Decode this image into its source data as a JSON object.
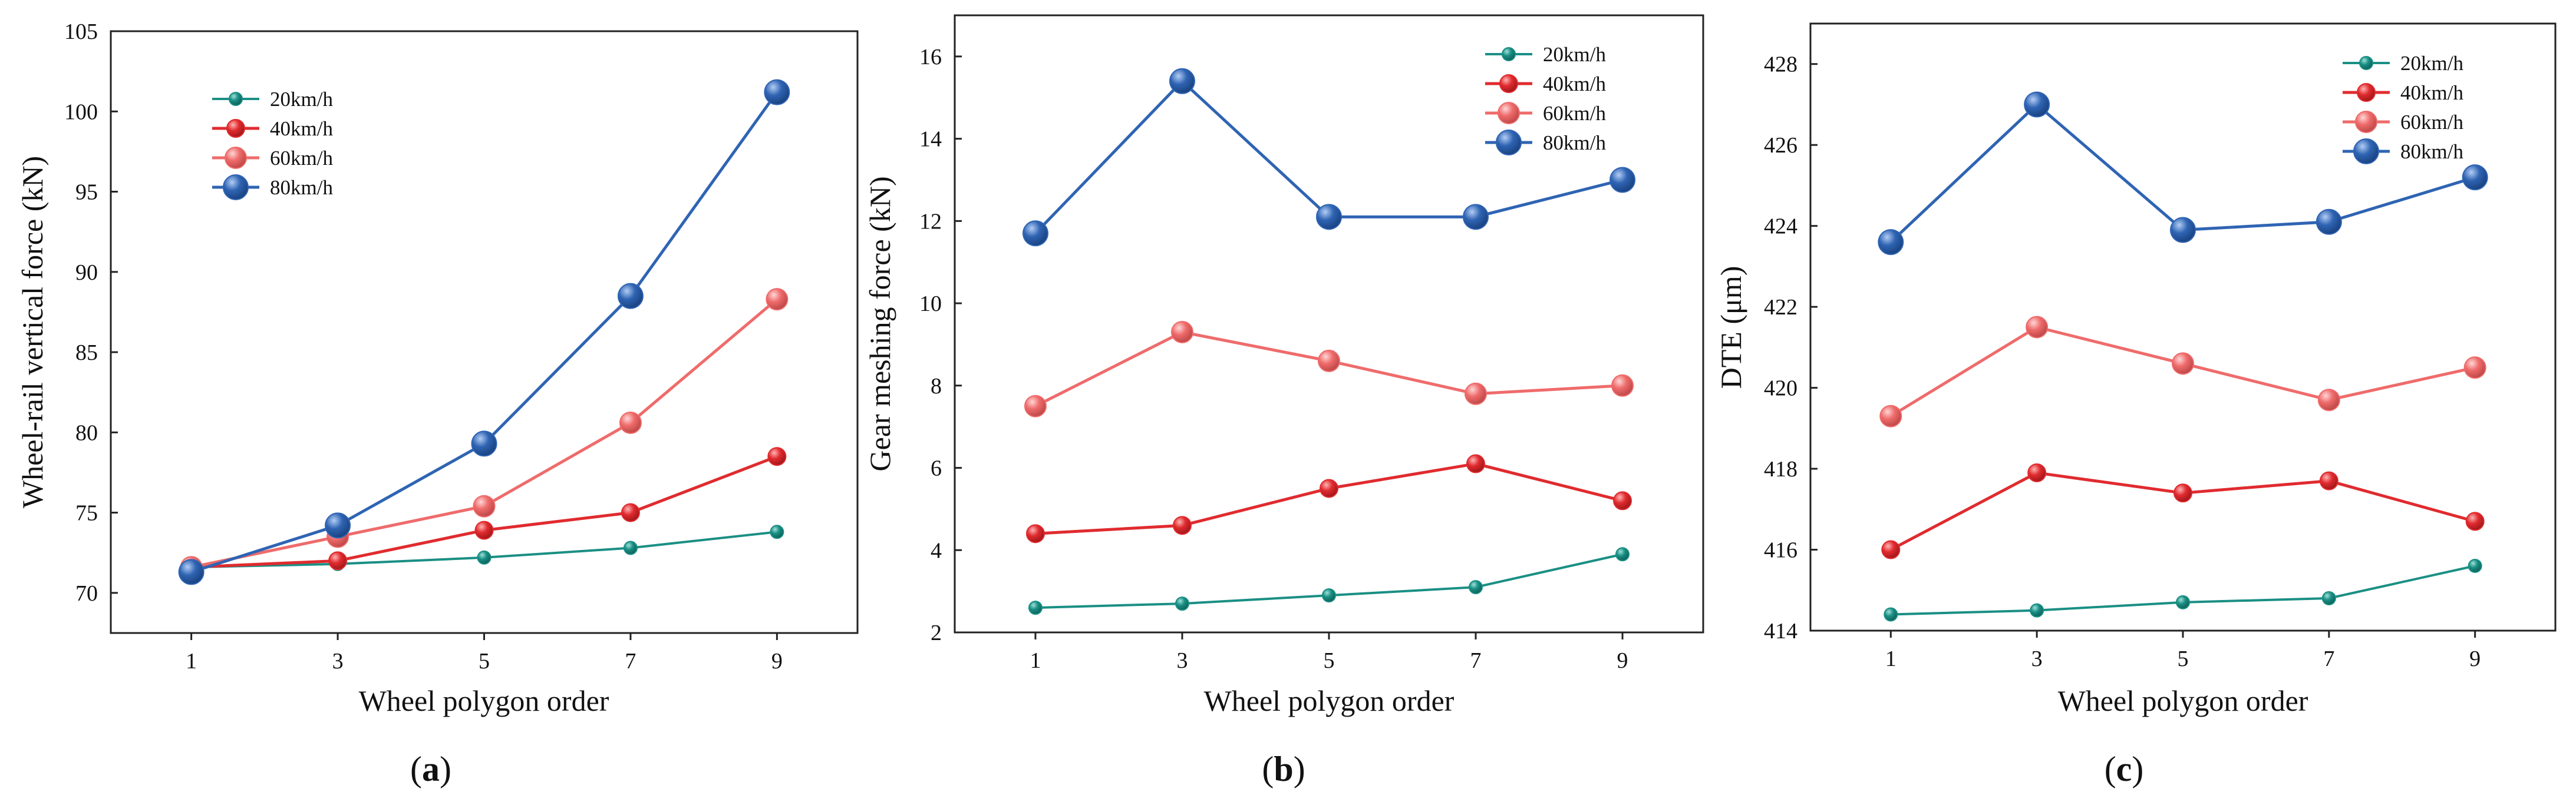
{
  "chart_data": [
    {
      "type": "line",
      "panel_label": "(a)",
      "panel_letter": "a",
      "xlabel": "Wheel polygon order",
      "ylabel": "Wheel-rail vertical force (kN)",
      "x": [
        1,
        3,
        5,
        7,
        9
      ],
      "xlim": [
        -0.1,
        10.1
      ],
      "ylim": [
        67.5,
        105
      ],
      "yticks": [
        70,
        75,
        80,
        85,
        90,
        95,
        100,
        105
      ],
      "legend_position": "top-left",
      "series": [
        {
          "name": "20km/h",
          "values": [
            71.6,
            71.8,
            72.2,
            72.8,
            73.8
          ]
        },
        {
          "name": "40km/h",
          "values": [
            71.6,
            72.0,
            73.9,
            75.0,
            78.5
          ]
        },
        {
          "name": "60km/h",
          "values": [
            71.6,
            73.5,
            75.4,
            80.6,
            88.3
          ]
        },
        {
          "name": "80km/h",
          "values": [
            71.3,
            74.2,
            79.3,
            88.5,
            101.2
          ]
        }
      ]
    },
    {
      "type": "line",
      "panel_label": "(b)",
      "panel_letter": "b",
      "xlabel": "Wheel polygon order",
      "ylabel": "Gear meshing force (kN)",
      "x": [
        1,
        3,
        5,
        7,
        9
      ],
      "xlim": [
        -0.1,
        10.1
      ],
      "ylim": [
        2,
        17
      ],
      "yticks": [
        2,
        4,
        6,
        8,
        10,
        12,
        14,
        16
      ],
      "legend_position": "top-right",
      "series": [
        {
          "name": "20km/h",
          "values": [
            2.6,
            2.7,
            2.9,
            3.1,
            3.9
          ]
        },
        {
          "name": "40km/h",
          "values": [
            4.4,
            4.6,
            5.5,
            6.1,
            5.2
          ]
        },
        {
          "name": "60km/h",
          "values": [
            7.5,
            9.3,
            8.6,
            7.8,
            8.0
          ]
        },
        {
          "name": "80km/h",
          "values": [
            11.7,
            15.4,
            12.1,
            12.1,
            13.0
          ]
        }
      ]
    },
    {
      "type": "line",
      "panel_label": "(c)",
      "panel_letter": "c",
      "xlabel": "Wheel polygon order",
      "ylabel": "DTE (μm)",
      "x": [
        1,
        3,
        5,
        7,
        9
      ],
      "xlim": [
        -0.1,
        10.1
      ],
      "ylim": [
        414,
        429
      ],
      "yticks": [
        414,
        416,
        418,
        420,
        422,
        424,
        426,
        428
      ],
      "legend_position": "top-right",
      "series": [
        {
          "name": "20km/h",
          "values": [
            414.4,
            414.5,
            414.7,
            414.8,
            415.6
          ]
        },
        {
          "name": "40km/h",
          "values": [
            416.0,
            417.9,
            417.4,
            417.7,
            416.7
          ]
        },
        {
          "name": "60km/h",
          "values": [
            419.3,
            421.5,
            420.6,
            419.7,
            420.5
          ]
        },
        {
          "name": "80km/h",
          "values": [
            423.6,
            427.0,
            423.9,
            424.1,
            425.2
          ]
        }
      ]
    }
  ],
  "series_style": [
    {
      "line_color": "#1a8f84",
      "marker_color": "#1a8f84",
      "marker": "small"
    },
    {
      "line_color": "#e02b2f",
      "marker_color": "#e02b2f",
      "marker": "medium"
    },
    {
      "line_color": "#ef6b6b",
      "marker_color": "#ef6b6b",
      "marker": "large"
    },
    {
      "line_color": "#2f64b3",
      "marker_color": "#2f64b3",
      "marker": "xlarge"
    }
  ],
  "colors": {
    "axis": "#222222",
    "background": "#ffffff",
    "text": "#111111"
  }
}
